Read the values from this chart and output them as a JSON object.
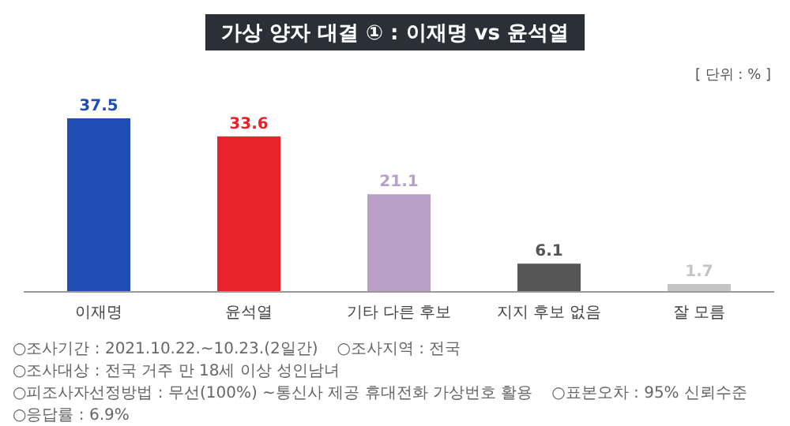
{
  "chart_data": {
    "type": "bar",
    "title": "가상  양자 대결 ① : 이재명 vs 윤석열",
    "subtitle": "[ 단위 : % ]",
    "categories": [
      "이재명",
      "윤석열",
      "기타 다른 후보",
      "지지 후보 없음",
      "잘 모름"
    ],
    "values": [
      37.5,
      33.6,
      21.1,
      6.1,
      1.7
    ],
    "colors": [
      "#1f4eb4",
      "#e8232b",
      "#b9a0c8",
      "#555555",
      "#c4c4c4"
    ],
    "data_labels": true,
    "annotations": [
      "○조사기간 : 2021.10.22.~10.23.(2일간)",
      "○조사지역 : 전국",
      "○조사대상 : 전국 거주 만 18세 이상 성인남녀",
      "○피조사자선정방법 : 무선(100%) ~통신사 제공 휴대전화 가상번호 활용",
      "○표본오차 : 95% 신뢰수준",
      "○응답률 : 6.9%"
    ]
  }
}
